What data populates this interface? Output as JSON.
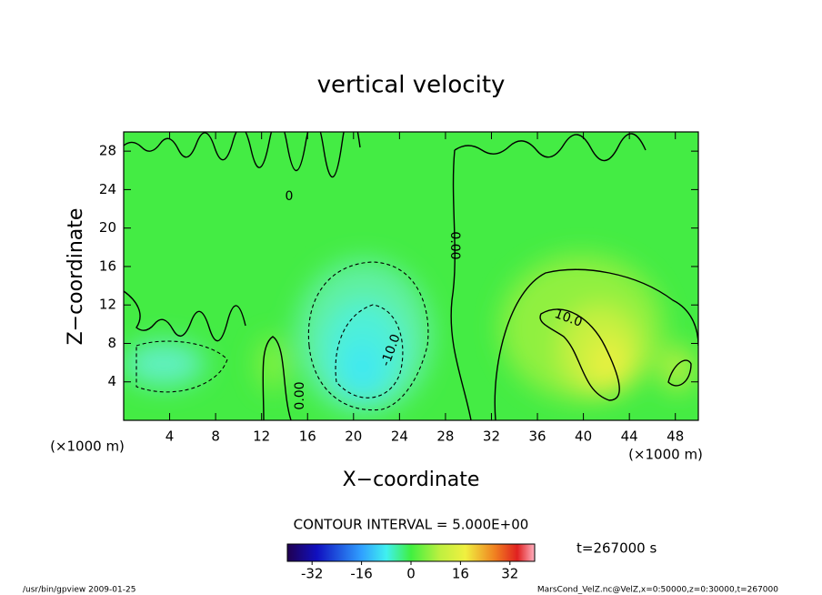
{
  "chart_data": {
    "type": "contour",
    "title": "vertical velocity",
    "x_label": "X−coordinate",
    "y_label": "Z−coordinate",
    "x_unit": "(×1000 m)",
    "y_unit": "(×1000 m)",
    "xlim": [
      0,
      50
    ],
    "xticks": [
      4,
      8,
      12,
      16,
      20,
      24,
      28,
      32,
      36,
      40,
      44,
      48
    ],
    "ylim": [
      0,
      30
    ],
    "yticks": [
      4,
      8,
      12,
      16,
      20,
      24,
      28
    ],
    "contour_labels": [
      "0",
      "0.00",
      "0.00",
      "10.0",
      "-10.0"
    ],
    "contour_interval": "CONTOUR INTERVAL = 5.000E+00",
    "time_label": "t=267000 s",
    "colorbar": {
      "lim": [
        -40,
        40
      ],
      "ticks": [
        -32,
        -16,
        0,
        16,
        32
      ]
    },
    "footer_left": "/usr/bin/gpview   2009-01-25",
    "footer_right": "MarsCond_VelZ.nc@VelZ,x=0:50000,z=0:30000,t=267000"
  }
}
